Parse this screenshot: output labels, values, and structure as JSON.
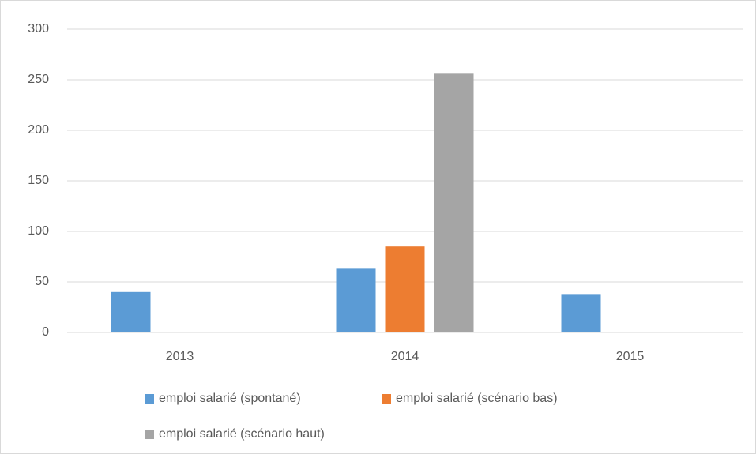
{
  "chart_data": {
    "type": "bar",
    "categories": [
      "2013",
      "2014",
      "2015"
    ],
    "series": [
      {
        "name": "emploi salarié (spontané)",
        "color": "#5b9bd5",
        "values": [
          40,
          63,
          38
        ]
      },
      {
        "name": "emploi salarié (scénario bas)",
        "color": "#ed7d31",
        "values": [
          null,
          85,
          null
        ]
      },
      {
        "name": "emploi salarié (scénario haut)",
        "color": "#a5a5a5",
        "values": [
          null,
          256,
          null
        ]
      }
    ],
    "ylim": [
      0,
      300
    ],
    "yticks": [
      0,
      50,
      100,
      150,
      200,
      250,
      300
    ],
    "grid": true,
    "legend": "bottom"
  }
}
